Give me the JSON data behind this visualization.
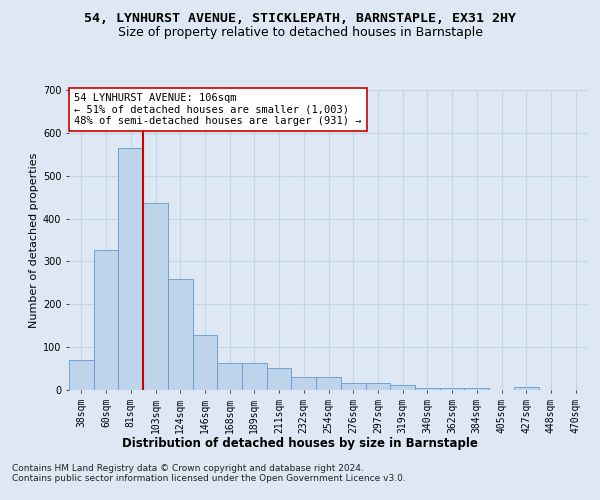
{
  "title": "54, LYNHURST AVENUE, STICKLEPATH, BARNSTAPLE, EX31 2HY",
  "subtitle": "Size of property relative to detached houses in Barnstaple",
  "xlabel": "Distribution of detached houses by size in Barnstaple",
  "ylabel": "Number of detached properties",
  "categories": [
    "38sqm",
    "60sqm",
    "81sqm",
    "103sqm",
    "124sqm",
    "146sqm",
    "168sqm",
    "189sqm",
    "211sqm",
    "232sqm",
    "254sqm",
    "276sqm",
    "297sqm",
    "319sqm",
    "340sqm",
    "362sqm",
    "384sqm",
    "405sqm",
    "427sqm",
    "448sqm",
    "470sqm"
  ],
  "values": [
    70,
    327,
    565,
    437,
    258,
    128,
    63,
    63,
    52,
    30,
    30,
    17,
    17,
    12,
    5,
    5,
    5,
    0,
    6,
    0,
    0
  ],
  "bar_color": "#bdd4ea",
  "bar_edge_color": "#6699cc",
  "vline_x": 2.5,
  "vline_color": "#cc0000",
  "annotation_text": "54 LYNHURST AVENUE: 106sqm\n← 51% of detached houses are smaller (1,003)\n48% of semi-detached houses are larger (931) →",
  "annotation_box_color": "#ffffff",
  "annotation_box_edge": "#cc0000",
  "ylim": [
    0,
    700
  ],
  "yticks": [
    0,
    100,
    200,
    300,
    400,
    500,
    600,
    700
  ],
  "bg_color": "#dde8f4",
  "plot_bg_color": "#dde8f4",
  "grid_color": "#c5d5e8",
  "footer": "Contains HM Land Registry data © Crown copyright and database right 2024.\nContains public sector information licensed under the Open Government Licence v3.0.",
  "title_fontsize": 9.5,
  "subtitle_fontsize": 9,
  "xlabel_fontsize": 8.5,
  "ylabel_fontsize": 8,
  "tick_fontsize": 7,
  "annot_fontsize": 7.5,
  "footer_fontsize": 6.5
}
